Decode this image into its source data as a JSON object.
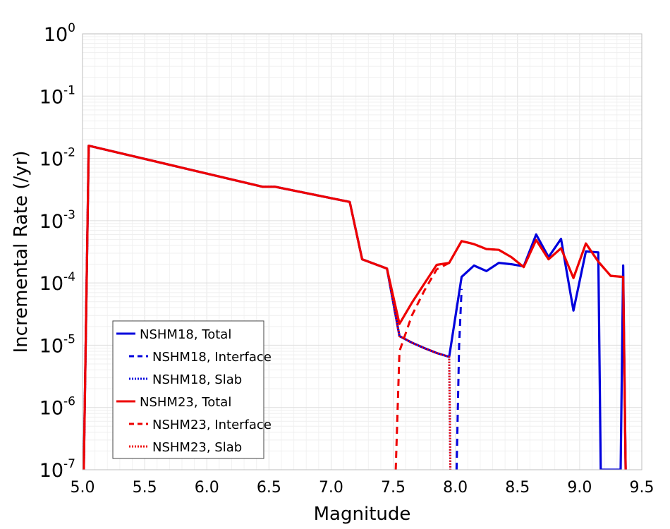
{
  "chart_data": {
    "type": "line",
    "xlabel": "Magnitude",
    "ylabel": "Incremental Rate (/yr)",
    "xlim": [
      5.0,
      9.5
    ],
    "ylim": [
      1e-07,
      1
    ],
    "yscale": "log",
    "grid": true,
    "legend_position": "bottom-left",
    "xticks": [
      "5.0",
      "5.5",
      "6.0",
      "6.5",
      "7.0",
      "7.5",
      "8.0",
      "8.5",
      "9.0",
      "9.5"
    ],
    "yticks": [
      {
        "base": "10",
        "exp": "-7"
      },
      {
        "base": "10",
        "exp": "-6"
      },
      {
        "base": "10",
        "exp": "-5"
      },
      {
        "base": "10",
        "exp": "-4"
      },
      {
        "base": "10",
        "exp": "-3"
      },
      {
        "base": "10",
        "exp": "-2"
      },
      {
        "base": "10",
        "exp": "-1"
      },
      {
        "base": "10",
        "exp": "0"
      }
    ],
    "series": [
      {
        "name": "NSHM18, Total",
        "color": "#0000dd",
        "dash": "solid",
        "points": [
          [
            5.01,
            1e-07
          ],
          [
            5.05,
            0.016
          ],
          [
            6.45,
            0.0035
          ],
          [
            6.55,
            0.0035
          ],
          [
            7.15,
            0.002
          ],
          [
            7.25,
            0.00024
          ],
          [
            7.45,
            0.00017
          ],
          [
            7.55,
            1.4e-05
          ],
          [
            7.65,
            1.1e-05
          ],
          [
            7.75,
            9e-06
          ],
          [
            7.85,
            7.5e-06
          ],
          [
            7.95,
            6.5e-06
          ],
          [
            8.05,
            0.000125
          ],
          [
            8.15,
            0.00019
          ],
          [
            8.25,
            0.000155
          ],
          [
            8.35,
            0.00021
          ],
          [
            8.45,
            0.0002
          ],
          [
            8.55,
            0.000185
          ],
          [
            8.65,
            0.0006
          ],
          [
            8.75,
            0.00026
          ],
          [
            8.85,
            0.00051
          ],
          [
            8.95,
            3.6e-05
          ],
          [
            9.05,
            0.00032
          ],
          [
            9.15,
            0.00031
          ],
          [
            9.17,
            1e-07
          ],
          [
            9.33,
            1e-07
          ],
          [
            9.35,
            0.00019
          ],
          [
            9.37,
            1e-07
          ]
        ]
      },
      {
        "name": "NSHM18, Interface",
        "color": "#0000dd",
        "dash": "dashed",
        "points": [
          [
            8.01,
            1e-07
          ],
          [
            8.03,
            1e-05
          ],
          [
            8.05,
            8e-05
          ]
        ]
      },
      {
        "name": "NSHM18, Slab",
        "color": "#0000dd",
        "dash": "dotted",
        "points": [
          [
            5.01,
            1e-07
          ],
          [
            5.05,
            0.016
          ],
          [
            6.45,
            0.0035
          ],
          [
            6.55,
            0.0035
          ],
          [
            7.15,
            0.002
          ],
          [
            7.25,
            0.00024
          ],
          [
            7.45,
            0.00017
          ],
          [
            7.55,
            1.4e-05
          ],
          [
            7.65,
            1.1e-05
          ],
          [
            7.75,
            9e-06
          ],
          [
            7.85,
            7.5e-06
          ],
          [
            7.95,
            6.5e-06
          ],
          [
            7.96,
            1e-07
          ]
        ]
      },
      {
        "name": "NSHM23, Total",
        "color": "#ee0000",
        "dash": "solid",
        "points": [
          [
            5.01,
            1e-07
          ],
          [
            5.05,
            0.016
          ],
          [
            6.45,
            0.0035
          ],
          [
            6.55,
            0.0035
          ],
          [
            7.15,
            0.002
          ],
          [
            7.25,
            0.00024
          ],
          [
            7.45,
            0.00017
          ],
          [
            7.55,
            2.2e-05
          ],
          [
            7.65,
            4.8e-05
          ],
          [
            7.75,
            9.7e-05
          ],
          [
            7.85,
            0.000195
          ],
          [
            7.95,
            0.00021
          ],
          [
            8.05,
            0.00047
          ],
          [
            8.15,
            0.00042
          ],
          [
            8.25,
            0.00035
          ],
          [
            8.35,
            0.00034
          ],
          [
            8.45,
            0.00026
          ],
          [
            8.55,
            0.00018
          ],
          [
            8.65,
            0.00049
          ],
          [
            8.75,
            0.00024
          ],
          [
            8.85,
            0.00036
          ],
          [
            8.95,
            0.00012
          ],
          [
            9.05,
            0.00043
          ],
          [
            9.15,
            0.00022
          ],
          [
            9.25,
            0.00013
          ],
          [
            9.35,
            0.000125
          ],
          [
            9.37,
            1e-07
          ]
        ]
      },
      {
        "name": "NSHM23, Interface",
        "color": "#ee0000",
        "dash": "dashed",
        "points": [
          [
            7.52,
            1e-07
          ],
          [
            7.55,
            8e-06
          ],
          [
            7.65,
            3e-05
          ],
          [
            7.75,
            7.5e-05
          ],
          [
            7.85,
            0.000165
          ],
          [
            7.95,
            0.00021
          ],
          [
            8.05,
            0.00047
          ],
          [
            8.15,
            0.00042
          ],
          [
            8.25,
            0.00035
          ],
          [
            8.35,
            0.00034
          ],
          [
            8.45,
            0.00026
          ],
          [
            8.55,
            0.00018
          ],
          [
            8.65,
            0.00049
          ],
          [
            8.75,
            0.00024
          ],
          [
            8.85,
            0.00036
          ],
          [
            8.95,
            0.00012
          ],
          [
            9.05,
            0.00043
          ],
          [
            9.15,
            0.00022
          ],
          [
            9.25,
            0.00013
          ],
          [
            9.35,
            0.000125
          ],
          [
            9.37,
            1e-07
          ]
        ]
      },
      {
        "name": "NSHM23, Slab",
        "color": "#ee0000",
        "dash": "dotted",
        "points": [
          [
            5.01,
            1e-07
          ],
          [
            5.05,
            0.016
          ],
          [
            6.45,
            0.0035
          ],
          [
            6.55,
            0.0035
          ],
          [
            7.15,
            0.002
          ],
          [
            7.25,
            0.00024
          ],
          [
            7.45,
            0.00017
          ],
          [
            7.55,
            1.4e-05
          ],
          [
            7.65,
            1.1e-05
          ],
          [
            7.75,
            9e-06
          ],
          [
            7.85,
            7.5e-06
          ],
          [
            7.95,
            6.5e-06
          ],
          [
            7.96,
            1e-07
          ]
        ]
      }
    ],
    "legend_order": [
      1,
      0,
      2,
      4,
      3,
      5
    ]
  }
}
